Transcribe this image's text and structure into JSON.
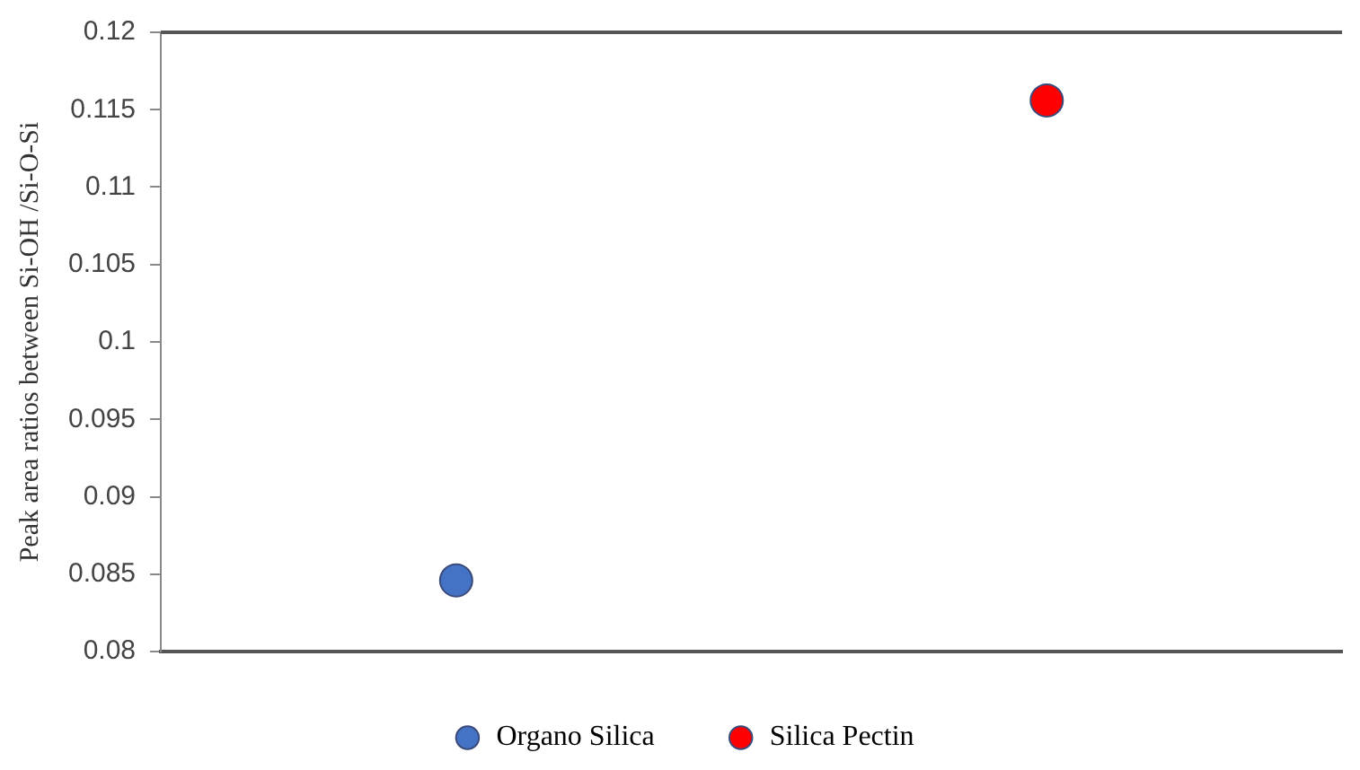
{
  "chart_data": {
    "type": "scatter",
    "ylabel": "Peak area ratios between Si-OH /Si-O-Si",
    "categories": [
      null,
      null
    ],
    "series": [
      {
        "name": "Organo Silica",
        "color": "#4472c4",
        "values": [
          0.0846,
          null
        ]
      },
      {
        "name": "Silica Pectin",
        "color": "#ff0000",
        "values": [
          null,
          0.1156
        ]
      }
    ],
    "ylim": [
      0.08,
      0.12
    ],
    "yticks": [
      0.08,
      0.085,
      0.09,
      0.095,
      0.1,
      0.105,
      0.11,
      0.115,
      0.12
    ],
    "grid": false,
    "legend": "bottom",
    "marker": "circle",
    "tick_labels": "y"
  }
}
